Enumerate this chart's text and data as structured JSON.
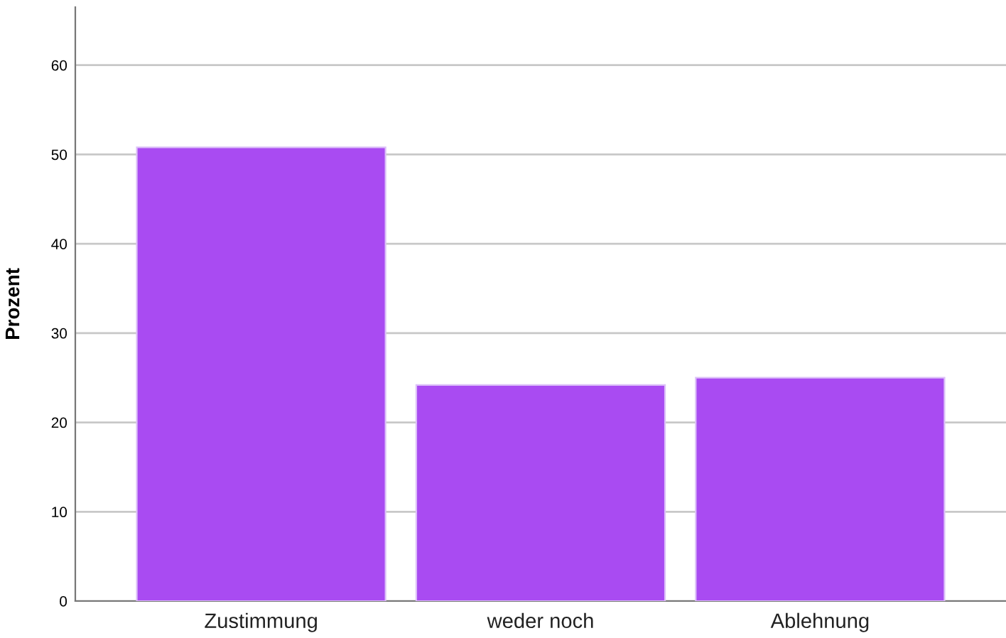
{
  "chart_data": {
    "type": "bar",
    "ylabel": "Prozent",
    "categories": [
      "Zustimmung",
      "weder noch",
      "Ablehnung"
    ],
    "values": [
      50.8,
      24.2,
      25.0
    ],
    "color": "#a94bf2",
    "ylim": [
      0,
      66.5
    ],
    "yticks": [
      0,
      10,
      20,
      30,
      40,
      50,
      60
    ],
    "grid": "y"
  }
}
